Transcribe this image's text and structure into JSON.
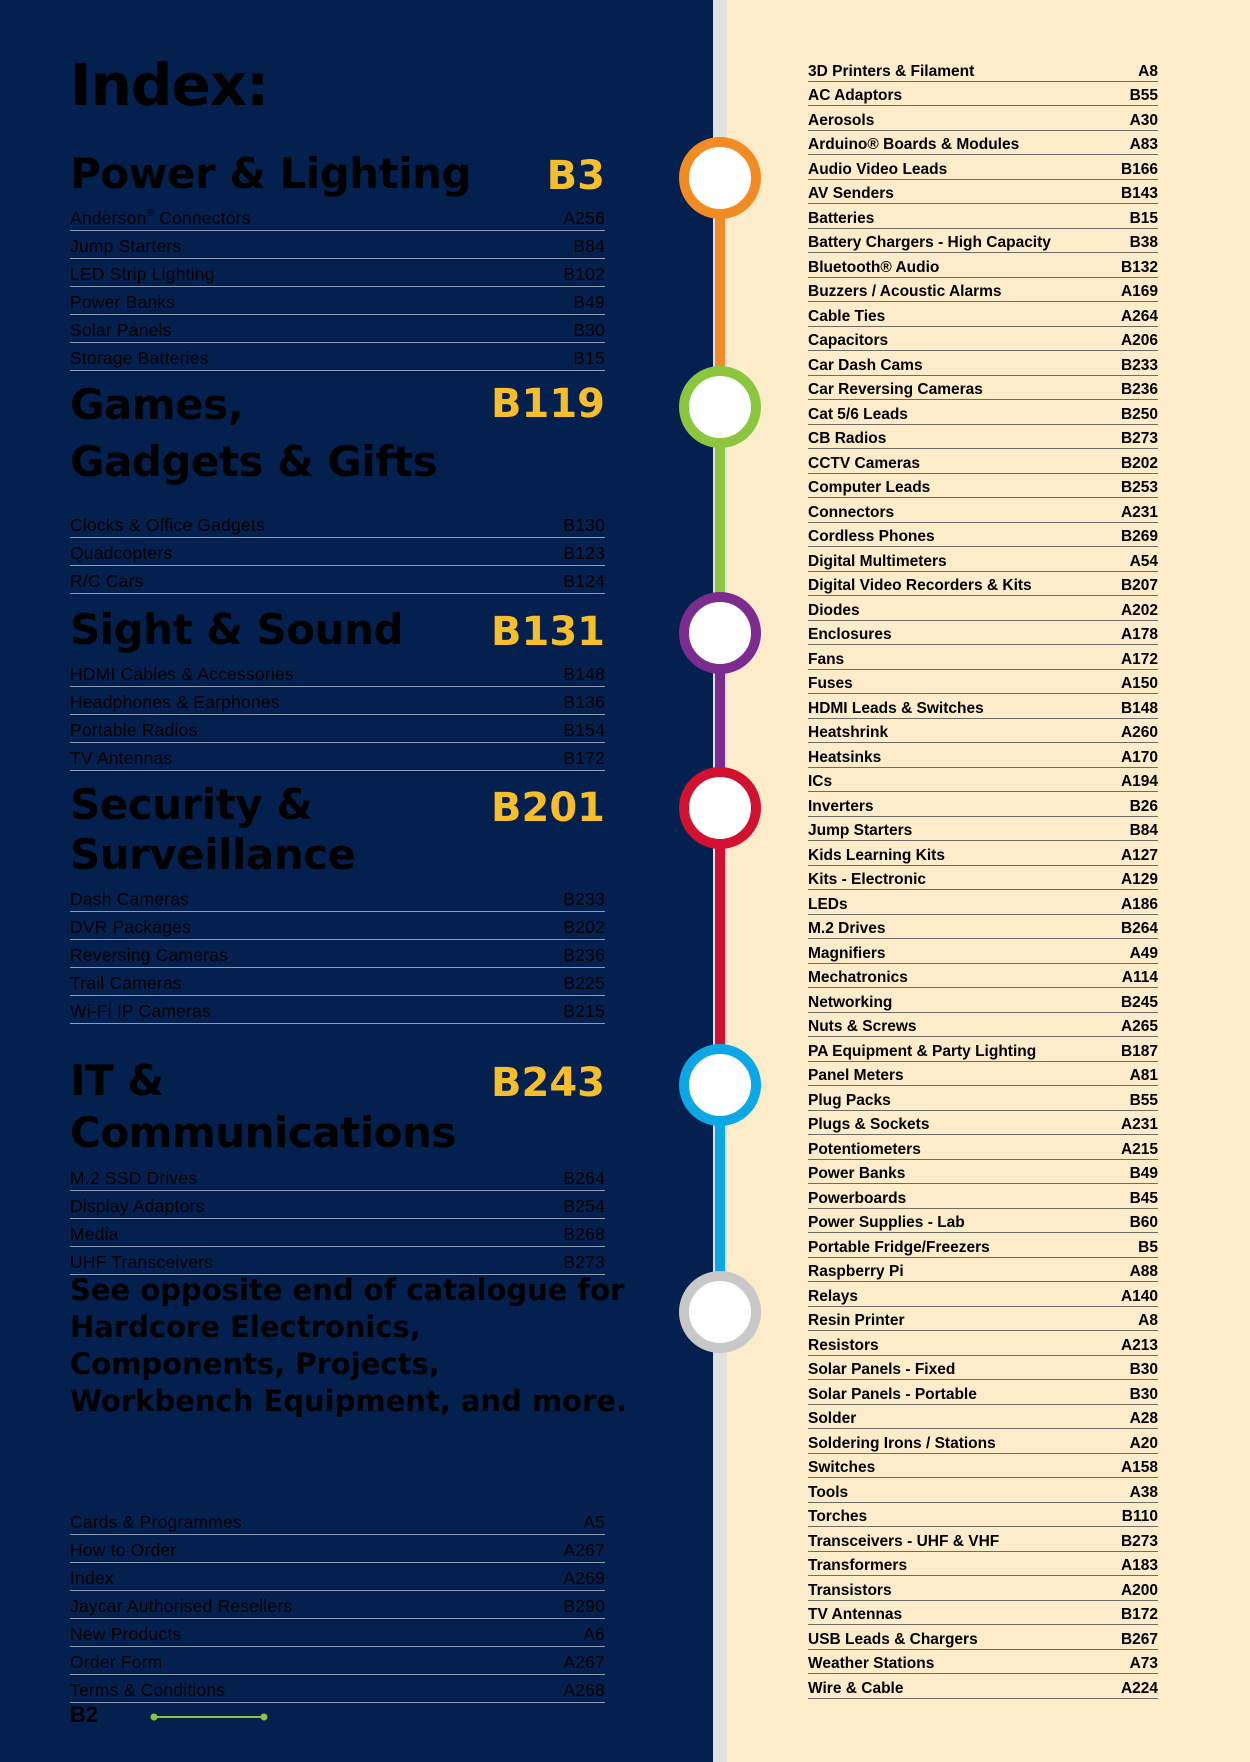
{
  "heading": "Index:",
  "sections": [
    {
      "title": "Power & Lighting",
      "page": "B3",
      "items": [
        {
          "label": "Anderson® Connectors",
          "page": "A256"
        },
        {
          "label": "Jump Starters",
          "page": "B84"
        },
        {
          "label": "LED Strip Lighting",
          "page": "B102"
        },
        {
          "label": "Power Banks",
          "page": "B49"
        },
        {
          "label": "Solar Panels",
          "page": "B30"
        },
        {
          "label": "Storage Batteries",
          "page": "B15"
        }
      ]
    },
    {
      "title": "Games, Gadgets & Gifts",
      "page": "B119",
      "items": [
        {
          "label": "Clocks & Office Gadgets",
          "page": "B130"
        },
        {
          "label": "Quadcopters",
          "page": "B123"
        },
        {
          "label": "R/C Cars",
          "page": "B124"
        }
      ]
    },
    {
      "title": "Sight & Sound",
      "page": "B131",
      "items": [
        {
          "label": "HDMI Cables & Accessories",
          "page": "B148"
        },
        {
          "label": "Headphones & Earphones",
          "page": "B136"
        },
        {
          "label": "Portable Radios",
          "page": "B154"
        },
        {
          "label": "TV Antennas",
          "page": "B172"
        }
      ]
    },
    {
      "title": "Security & Surveillance",
      "page": "B201",
      "items": [
        {
          "label": "Dash Cameras",
          "page": "B233"
        },
        {
          "label": "DVR Packages",
          "page": "B202"
        },
        {
          "label": "Reversing Cameras",
          "page": "B236"
        },
        {
          "label": "Trail Cameras",
          "page": "B225"
        },
        {
          "label": "Wi-Fi IP Cameras",
          "page": "B215"
        }
      ]
    },
    {
      "title": "IT & Communications",
      "page": "B243",
      "items": [
        {
          "label": "M.2 SSD Drives",
          "page": "B264"
        },
        {
          "label": "Display Adaptors",
          "page": "B254"
        },
        {
          "label": "Media",
          "page": "B268"
        },
        {
          "label": "UHF Transceivers",
          "page": "B273"
        }
      ]
    }
  ],
  "note": "See opposite end of catalogue for Hardcore Electronics, Components, Projects, Workbench Equipment, and more.",
  "misc_items": [
    {
      "label": "Cards & Programmes",
      "page": "A5"
    },
    {
      "label": "How to Order",
      "page": "A267"
    },
    {
      "label": "Index",
      "page": "A269"
    },
    {
      "label": "Jaycar Authorised Resellers",
      "page": "B290"
    },
    {
      "label": "New Products",
      "page": "A6"
    },
    {
      "label": "Order Form",
      "page": "A267"
    },
    {
      "label": "Terms & Conditions",
      "page": "A268"
    }
  ],
  "page_number": "B2",
  "timeline_colors": [
    "#f28b22",
    "#8cc63f",
    "#7b2c8e",
    "#d2102f",
    "#0ca7e4",
    "#c8c8c8"
  ],
  "index_items": [
    {
      "label": "3D Printers & Filament",
      "page": "A8"
    },
    {
      "label": "AC Adaptors",
      "page": "B55"
    },
    {
      "label": "Aerosols",
      "page": "A30"
    },
    {
      "label": "Arduino® Boards & Modules",
      "page": "A83"
    },
    {
      "label": "Audio Video Leads",
      "page": "B166"
    },
    {
      "label": "AV Senders",
      "page": "B143"
    },
    {
      "label": "Batteries",
      "page": "B15"
    },
    {
      "label": "Battery Chargers - High Capacity",
      "page": "B38"
    },
    {
      "label": "Bluetooth® Audio",
      "page": "B132"
    },
    {
      "label": "Buzzers / Acoustic Alarms",
      "page": "A169"
    },
    {
      "label": "Cable Ties",
      "page": "A264"
    },
    {
      "label": "Capacitors",
      "page": "A206"
    },
    {
      "label": "Car Dash Cams",
      "page": "B233"
    },
    {
      "label": "Car Reversing Cameras",
      "page": "B236"
    },
    {
      "label": "Cat 5/6 Leads",
      "page": "B250"
    },
    {
      "label": "CB Radios",
      "page": "B273"
    },
    {
      "label": "CCTV Cameras",
      "page": "B202"
    },
    {
      "label": "Computer Leads",
      "page": "B253"
    },
    {
      "label": "Connectors",
      "page": "A231"
    },
    {
      "label": "Cordless Phones",
      "page": "B269"
    },
    {
      "label": "Digital Multimeters",
      "page": "A54"
    },
    {
      "label": "Digital Video Recorders & Kits",
      "page": "B207"
    },
    {
      "label": "Diodes",
      "page": "A202"
    },
    {
      "label": "Enclosures",
      "page": "A178"
    },
    {
      "label": "Fans",
      "page": "A172"
    },
    {
      "label": "Fuses",
      "page": "A150"
    },
    {
      "label": "HDMI Leads & Switches",
      "page": "B148"
    },
    {
      "label": "Heatshrink",
      "page": "A260"
    },
    {
      "label": "Heatsinks",
      "page": "A170"
    },
    {
      "label": "ICs",
      "page": "A194"
    },
    {
      "label": "Inverters",
      "page": "B26"
    },
    {
      "label": "Jump Starters",
      "page": "B84"
    },
    {
      "label": "Kids Learning Kits",
      "page": "A127"
    },
    {
      "label": "Kits - Electronic",
      "page": "A129"
    },
    {
      "label": "LEDs",
      "page": "A186"
    },
    {
      "label": "M.2 Drives",
      "page": "B264"
    },
    {
      "label": "Magnifiers",
      "page": "A49"
    },
    {
      "label": "Mechatronics",
      "page": "A114"
    },
    {
      "label": "Networking",
      "page": "B245"
    },
    {
      "label": "Nuts & Screws",
      "page": "A265"
    },
    {
      "label": "PA Equipment & Party Lighting",
      "page": "B187"
    },
    {
      "label": "Panel Meters",
      "page": "A81"
    },
    {
      "label": "Plug Packs",
      "page": "B55"
    },
    {
      "label": "Plugs & Sockets",
      "page": "A231"
    },
    {
      "label": "Potentiometers",
      "page": "A215"
    },
    {
      "label": "Power Banks",
      "page": "B49"
    },
    {
      "label": "Powerboards",
      "page": "B45"
    },
    {
      "label": "Power Supplies - Lab",
      "page": "B60"
    },
    {
      "label": "Portable Fridge/Freezers",
      "page": "B5"
    },
    {
      "label": "Raspberry Pi",
      "page": "A88"
    },
    {
      "label": "Relays",
      "page": "A140"
    },
    {
      "label": "Resin Printer",
      "page": "A8"
    },
    {
      "label": "Resistors",
      "page": "A213"
    },
    {
      "label": "Solar Panels - Fixed",
      "page": "B30"
    },
    {
      "label": "Solar Panels - Portable",
      "page": "B30"
    },
    {
      "label": "Solder",
      "page": "A28"
    },
    {
      "label": "Soldering Irons / Stations",
      "page": "A20"
    },
    {
      "label": "Switches",
      "page": "A158"
    },
    {
      "label": "Tools",
      "page": "A38"
    },
    {
      "label": "Torches",
      "page": "B110"
    },
    {
      "label": "Transceivers - UHF & VHF",
      "page": "B273"
    },
    {
      "label": "Transformers",
      "page": "A183"
    },
    {
      "label": "Transistors",
      "page": "A200"
    },
    {
      "label": "TV Antennas",
      "page": "B172"
    },
    {
      "label": "USB Leads & Chargers",
      "page": "B267"
    },
    {
      "label": "Weather Stations",
      "page": "A73"
    },
    {
      "label": "Wire & Cable",
      "page": "A224"
    }
  ]
}
